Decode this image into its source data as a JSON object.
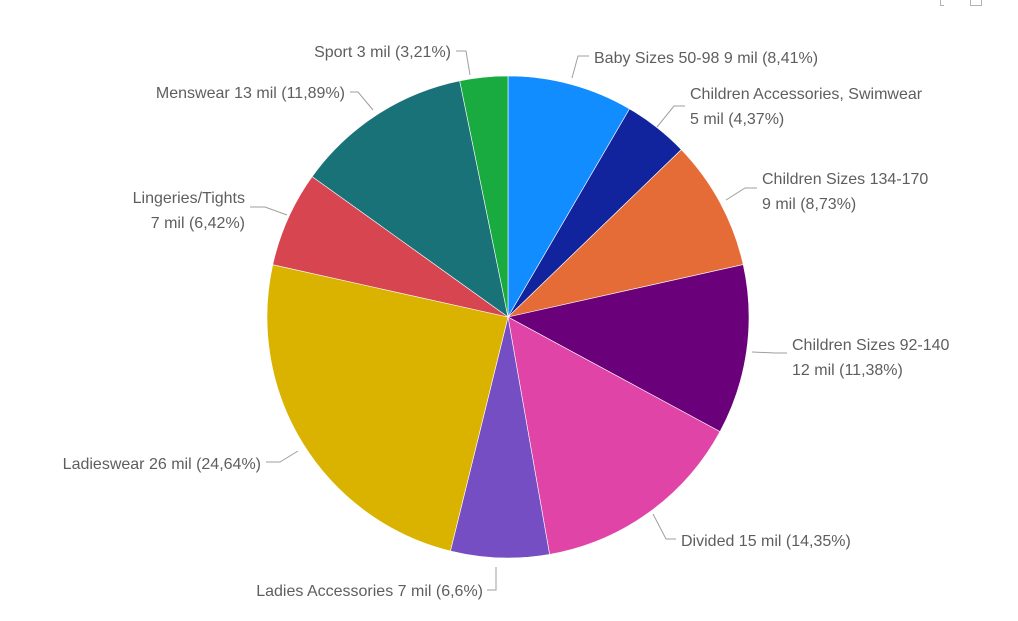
{
  "chart_data": {
    "type": "pie",
    "title": "",
    "legend": "none",
    "slices": [
      {
        "category": "Baby Sizes 50-98",
        "value_label": "9 mil",
        "percent": 8.41,
        "percent_label": "8,41%",
        "color": "#118DFF"
      },
      {
        "category": "Children Accessories, Swimwear",
        "value_label": "5 mil",
        "percent": 4.37,
        "percent_label": "4,37%",
        "color": "#12239E"
      },
      {
        "category": "Children Sizes 134-170",
        "value_label": "9 mil",
        "percent": 8.73,
        "percent_label": "8,73%",
        "color": "#E66C37"
      },
      {
        "category": "Children Sizes 92-140",
        "value_label": "12 mil",
        "percent": 11.38,
        "percent_label": "11,38%",
        "color": "#6B007B"
      },
      {
        "category": "Divided",
        "value_label": "15 mil",
        "percent": 14.35,
        "percent_label": "14,35%",
        "color": "#E044A7"
      },
      {
        "category": "Ladies Accessories",
        "value_label": "7 mil",
        "percent": 6.6,
        "percent_label": "6,6%",
        "color": "#744EC2"
      },
      {
        "category": "Ladieswear",
        "value_label": "26 mil",
        "percent": 24.64,
        "percent_label": "24,64%",
        "color": "#D9B300"
      },
      {
        "category": "Lingeries/Tights",
        "value_label": "7 mil",
        "percent": 6.42,
        "percent_label": "6,42%",
        "color": "#D64550"
      },
      {
        "category": "Menswear",
        "value_label": "13 mil",
        "percent": 11.89,
        "percent_label": "11,89%",
        "color": "#197278"
      },
      {
        "category": "Sport",
        "value_label": "3 mil",
        "percent": 3.21,
        "percent_label": "3,21%",
        "color": "#1AAB40"
      }
    ],
    "labels": [
      {
        "lines": [
          "Baby Sizes 50-98 9 mil (8,41%)"
        ]
      },
      {
        "lines": [
          "Children Accessories, Swimwear",
          "5 mil (4,37%)"
        ]
      },
      {
        "lines": [
          "Children Sizes 134-170",
          "9 mil (8,73%)"
        ]
      },
      {
        "lines": [
          "Children Sizes 92-140",
          "12 mil (11,38%)"
        ]
      },
      {
        "lines": [
          "Divided 15 mil (14,35%)"
        ]
      },
      {
        "lines": [
          "Ladies Accessories 7 mil (6,6%)"
        ]
      },
      {
        "lines": [
          "Ladieswear 26 mil (24,64%)"
        ]
      },
      {
        "lines": [
          "Lingeries/Tights",
          "7 mil (6,42%)"
        ]
      },
      {
        "lines": [
          "Menswear 13 mil (11,89%)"
        ]
      },
      {
        "lines": [
          "Sport 3 mil (3,21%)"
        ]
      }
    ]
  }
}
